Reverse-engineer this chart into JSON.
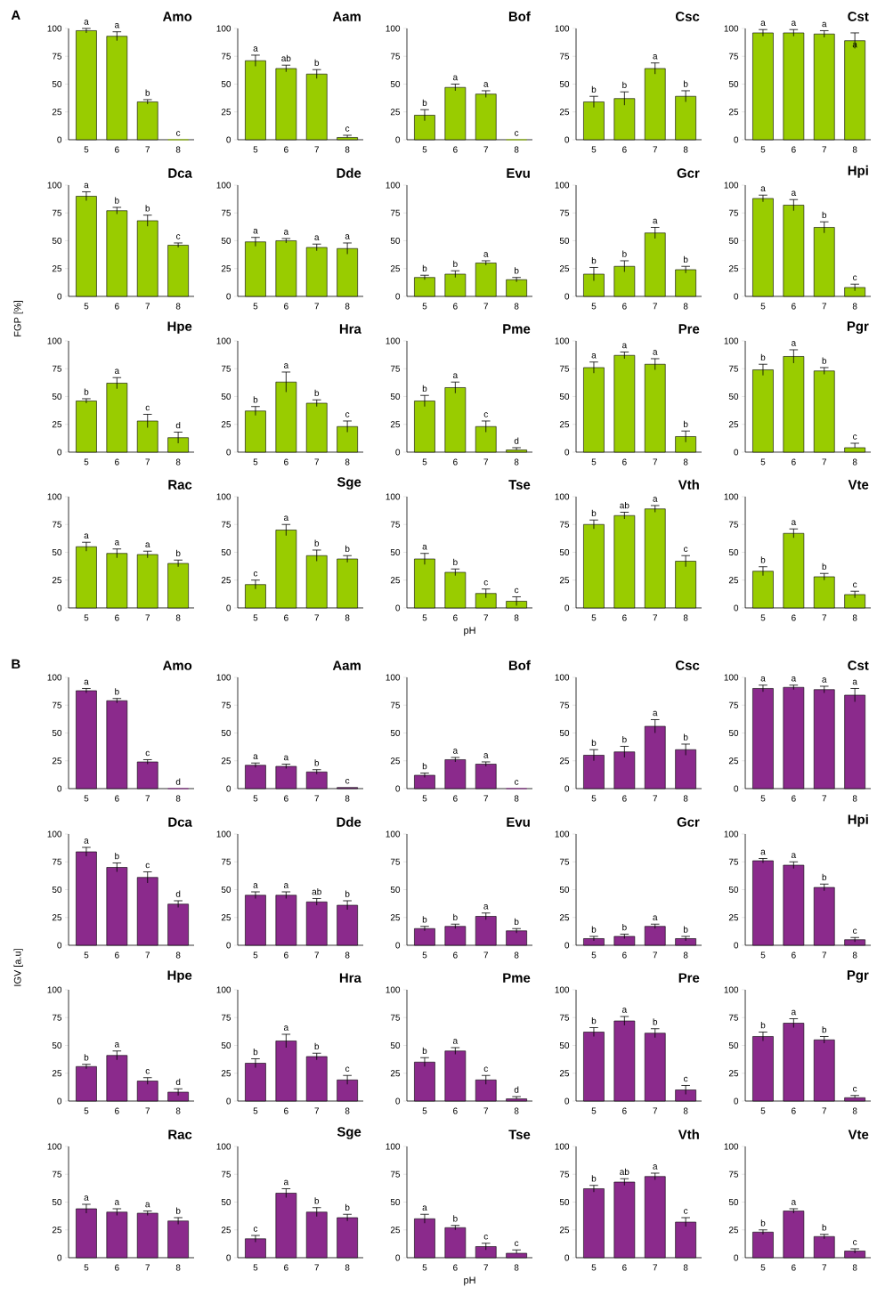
{
  "chart_data": [
    {
      "type": "bar",
      "title": "Amo",
      "annotations": [
        "A"
      ],
      "categories": [
        "5",
        "6",
        "7",
        "8"
      ],
      "values": [
        98,
        93,
        34,
        0
      ],
      "errors": [
        2,
        4,
        2,
        null
      ],
      "value_labels": [
        "a",
        "a",
        "b",
        "c"
      ],
      "color": "#99cc00",
      "ylim": [
        0,
        100
      ],
      "yticks": [
        0,
        25,
        50,
        75,
        100
      ]
    },
    {
      "type": "bar",
      "title": "Aam",
      "categories": [
        "5",
        "6",
        "7",
        "8"
      ],
      "values": [
        71,
        64,
        59,
        2
      ],
      "errors": [
        5,
        3,
        4,
        [
          2,
          4
        ]
      ],
      "value_labels": [
        "a",
        "ab",
        "b",
        "c"
      ],
      "color": "#99cc00",
      "ylim": [
        0,
        100
      ],
      "yticks": [
        0,
        25,
        50,
        75,
        100
      ]
    },
    {
      "type": "bar",
      "title": "Bof",
      "categories": [
        "5",
        "6",
        "7",
        "8"
      ],
      "values": [
        22,
        47,
        41,
        0
      ],
      "errors": [
        5,
        3,
        3,
        null
      ],
      "value_labels": [
        "b",
        "a",
        "a",
        "c"
      ],
      "color": "#99cc00",
      "ylim": [
        0,
        100
      ],
      "yticks": [
        0,
        25,
        50,
        75,
        100
      ]
    },
    {
      "type": "bar",
      "title": "Csc",
      "categories": [
        "5",
        "6",
        "7",
        "8"
      ],
      "values": [
        34,
        37,
        64,
        39
      ],
      "errors": [
        5,
        6,
        5,
        5
      ],
      "value_labels": [
        "b",
        "b",
        "a",
        "b"
      ],
      "color": "#99cc00",
      "ylim": [
        0,
        100
      ],
      "yticks": [
        0,
        25,
        50,
        75,
        100
      ]
    },
    {
      "type": "bar",
      "title": "Cst",
      "categories": [
        "5",
        "6",
        "7",
        "8"
      ],
      "values": [
        96,
        96,
        95,
        89
      ],
      "errors": [
        3,
        3,
        3,
        7
      ],
      "value_labels": [
        "a",
        "a",
        "a",
        "a"
      ],
      "color": "#99cc00",
      "ylim": [
        0,
        100
      ],
      "yticks": [
        0,
        25,
        50,
        75,
        100
      ]
    },
    {
      "type": "bar",
      "title": "Dca",
      "categories": [
        "5",
        "6",
        "7",
        "8"
      ],
      "values": [
        90,
        77,
        68,
        46
      ],
      "errors": [
        4,
        3,
        5,
        2
      ],
      "value_labels": [
        "a",
        "b",
        "b",
        "c"
      ],
      "color": "#99cc00",
      "ylim": [
        0,
        100
      ],
      "yticks": [
        0,
        25,
        50,
        75,
        100
      ],
      "ylabel": "FGP [%]"
    },
    {
      "type": "bar",
      "title": "Dde",
      "categories": [
        "5",
        "6",
        "7",
        "8"
      ],
      "values": [
        49,
        50,
        44,
        43
      ],
      "errors": [
        4,
        2,
        3,
        5
      ],
      "value_labels": [
        "a",
        "a",
        "a",
        "a"
      ],
      "color": "#99cc00",
      "ylim": [
        0,
        100
      ],
      "yticks": [
        0,
        25,
        50,
        75,
        100
      ]
    },
    {
      "type": "bar",
      "title": "Evu",
      "categories": [
        "5",
        "6",
        "7",
        "8"
      ],
      "values": [
        17,
        20,
        30,
        15
      ],
      "errors": [
        2,
        3,
        2,
        2
      ],
      "value_labels": [
        "b",
        "b",
        "a",
        "b"
      ],
      "color": "#99cc00",
      "ylim": [
        0,
        100
      ],
      "yticks": [
        0,
        25,
        50,
        75,
        100
      ]
    },
    {
      "type": "bar",
      "title": "Gcr",
      "categories": [
        "5",
        "6",
        "7",
        "8"
      ],
      "values": [
        20,
        27,
        57,
        24
      ],
      "errors": [
        6,
        5,
        5,
        3
      ],
      "value_labels": [
        "b",
        "b",
        "a",
        "b"
      ],
      "color": "#99cc00",
      "ylim": [
        0,
        100
      ],
      "yticks": [
        0,
        25,
        50,
        75,
        100
      ]
    },
    {
      "type": "bar",
      "title": "Hpi",
      "categories": [
        "5",
        "6",
        "7",
        "8"
      ],
      "values": [
        88,
        82,
        62,
        8
      ],
      "errors": [
        3,
        5,
        5,
        3
      ],
      "value_labels": [
        "a",
        "a",
        "b",
        "c"
      ],
      "color": "#99cc00",
      "ylim": [
        0,
        100
      ],
      "yticks": [
        0,
        25,
        50,
        75,
        100
      ]
    },
    {
      "type": "bar",
      "title": "Hpe",
      "categories": [
        "5",
        "6",
        "7",
        "8"
      ],
      "values": [
        46,
        62,
        28,
        13
      ],
      "errors": [
        2,
        5,
        6,
        5
      ],
      "value_labels": [
        "b",
        "a",
        "c",
        "d"
      ],
      "color": "#99cc00",
      "ylim": [
        0,
        100
      ],
      "yticks": [
        0,
        25,
        50,
        75,
        100
      ]
    },
    {
      "type": "bar",
      "title": "Hra",
      "categories": [
        "5",
        "6",
        "7",
        "8"
      ],
      "values": [
        37,
        63,
        44,
        23
      ],
      "errors": [
        4,
        9,
        3,
        5
      ],
      "value_labels": [
        "b",
        "a",
        "b",
        "c"
      ],
      "color": "#99cc00",
      "ylim": [
        0,
        100
      ],
      "yticks": [
        0,
        25,
        50,
        75,
        100
      ]
    },
    {
      "type": "bar",
      "title": "Pme",
      "categories": [
        "5",
        "6",
        "7",
        "8"
      ],
      "values": [
        46,
        58,
        23,
        2
      ],
      "errors": [
        5,
        5,
        5,
        [
          2,
          4
        ]
      ],
      "value_labels": [
        "b",
        "a",
        "c",
        "d"
      ],
      "color": "#99cc00",
      "ylim": [
        0,
        100
      ],
      "yticks": [
        0,
        25,
        50,
        75,
        100
      ]
    },
    {
      "type": "bar",
      "title": "Pre",
      "categories": [
        "5",
        "6",
        "7",
        "8"
      ],
      "values": [
        76,
        87,
        79,
        14
      ],
      "errors": [
        5,
        3,
        5,
        5
      ],
      "value_labels": [
        "a",
        "a",
        "a",
        "b"
      ],
      "color": "#99cc00",
      "ylim": [
        0,
        100
      ],
      "yticks": [
        0,
        25,
        50,
        75,
        100
      ]
    },
    {
      "type": "bar",
      "title": "Pgr",
      "categories": [
        "5",
        "6",
        "7",
        "8"
      ],
      "values": [
        74,
        86,
        73,
        4
      ],
      "errors": [
        5,
        6,
        3,
        [
          4,
          8
        ]
      ],
      "value_labels": [
        "b",
        "a",
        "b",
        "c"
      ],
      "color": "#99cc00",
      "ylim": [
        0,
        100
      ],
      "yticks": [
        0,
        25,
        50,
        75,
        100
      ]
    },
    {
      "type": "bar",
      "title": "Rac",
      "categories": [
        "5",
        "6",
        "7",
        "8"
      ],
      "values": [
        55,
        49,
        48,
        40
      ],
      "errors": [
        4,
        4,
        3,
        3
      ],
      "value_labels": [
        "a",
        "a",
        "a",
        "b"
      ],
      "color": "#99cc00",
      "ylim": [
        0,
        100
      ],
      "yticks": [
        0,
        25,
        50,
        75,
        100
      ]
    },
    {
      "type": "bar",
      "title": "Sge",
      "categories": [
        "5",
        "6",
        "7",
        "8"
      ],
      "values": [
        21,
        70,
        47,
        44
      ],
      "errors": [
        4,
        5,
        5,
        3
      ],
      "value_labels": [
        "c",
        "a",
        "b",
        "b"
      ],
      "color": "#99cc00",
      "ylim": [
        0,
        100
      ],
      "yticks": [
        0,
        25,
        50,
        75,
        100
      ]
    },
    {
      "type": "bar",
      "title": "Tse",
      "categories": [
        "5",
        "6",
        "7",
        "8"
      ],
      "values": [
        44,
        32,
        13,
        6
      ],
      "errors": [
        5,
        3,
        4,
        4
      ],
      "value_labels": [
        "a",
        "b",
        "c",
        "c"
      ],
      "color": "#99cc00",
      "ylim": [
        0,
        100
      ],
      "yticks": [
        0,
        25,
        50,
        75,
        100
      ],
      "xlabel": "pH"
    },
    {
      "type": "bar",
      "title": "Vth",
      "categories": [
        "5",
        "6",
        "7",
        "8"
      ],
      "values": [
        75,
        83,
        89,
        42
      ],
      "errors": [
        4,
        3,
        3,
        5
      ],
      "value_labels": [
        "b",
        "ab",
        "a",
        "c"
      ],
      "color": "#99cc00",
      "ylim": [
        0,
        100
      ],
      "yticks": [
        0,
        25,
        50,
        75,
        100
      ]
    },
    {
      "type": "bar",
      "title": "Vte",
      "categories": [
        "5",
        "6",
        "7",
        "8"
      ],
      "values": [
        33,
        67,
        28,
        12
      ],
      "errors": [
        4,
        4,
        3,
        3
      ],
      "value_labels": [
        "b",
        "a",
        "b",
        "c"
      ],
      "color": "#99cc00",
      "ylim": [
        0,
        100
      ],
      "yticks": [
        0,
        25,
        50,
        75,
        100
      ]
    },
    {
      "type": "bar",
      "title": "Amo",
      "annotations": [
        "B"
      ],
      "categories": [
        "5",
        "6",
        "7",
        "8"
      ],
      "values": [
        88,
        79,
        24,
        0
      ],
      "errors": [
        2,
        2,
        2,
        null
      ],
      "value_labels": [
        "a",
        "b",
        "c",
        "d"
      ],
      "color": "#8b2a8c",
      "ylim": [
        0,
        100
      ],
      "yticks": [
        0,
        25,
        50,
        75,
        100
      ]
    },
    {
      "type": "bar",
      "title": "Aam",
      "categories": [
        "5",
        "6",
        "7",
        "8"
      ],
      "values": [
        21,
        20,
        15,
        1
      ],
      "errors": [
        2,
        2,
        2,
        null
      ],
      "value_labels": [
        "a",
        "a",
        "b",
        "c"
      ],
      "color": "#8b2a8c",
      "ylim": [
        0,
        100
      ],
      "yticks": [
        0,
        25,
        50,
        75,
        100
      ]
    },
    {
      "type": "bar",
      "title": "Bof",
      "categories": [
        "5",
        "6",
        "7",
        "8"
      ],
      "values": [
        12,
        26,
        22,
        0
      ],
      "errors": [
        2,
        2,
        2,
        null
      ],
      "value_labels": [
        "b",
        "a",
        "a",
        "c"
      ],
      "color": "#8b2a8c",
      "ylim": [
        0,
        100
      ],
      "yticks": [
        0,
        25,
        50,
        75,
        100
      ]
    },
    {
      "type": "bar",
      "title": "Csc",
      "categories": [
        "5",
        "6",
        "7",
        "8"
      ],
      "values": [
        30,
        33,
        56,
        35
      ],
      "errors": [
        5,
        5,
        6,
        5
      ],
      "value_labels": [
        "b",
        "b",
        "a",
        "b"
      ],
      "color": "#8b2a8c",
      "ylim": [
        0,
        100
      ],
      "yticks": [
        0,
        25,
        50,
        75,
        100
      ]
    },
    {
      "type": "bar",
      "title": "Cst",
      "categories": [
        "5",
        "6",
        "7",
        "8"
      ],
      "values": [
        90,
        91,
        89,
        84
      ],
      "errors": [
        3,
        2,
        3,
        6
      ],
      "value_labels": [
        "a",
        "a",
        "a",
        "a"
      ],
      "color": "#8b2a8c",
      "ylim": [
        0,
        100
      ],
      "yticks": [
        0,
        25,
        50,
        75,
        100
      ]
    },
    {
      "type": "bar",
      "title": "Dca",
      "categories": [
        "5",
        "6",
        "7",
        "8"
      ],
      "values": [
        84,
        70,
        61,
        37
      ],
      "errors": [
        4,
        4,
        5,
        3
      ],
      "value_labels": [
        "a",
        "b",
        "c",
        "d"
      ],
      "color": "#8b2a8c",
      "ylim": [
        0,
        100
      ],
      "yticks": [
        0,
        25,
        50,
        75,
        100
      ],
      "ylabel": "IGV [a.u]"
    },
    {
      "type": "bar",
      "title": "Dde",
      "categories": [
        "5",
        "6",
        "7",
        "8"
      ],
      "values": [
        45,
        45,
        39,
        36
      ],
      "errors": [
        3,
        3,
        3,
        4
      ],
      "value_labels": [
        "a",
        "a",
        "ab",
        "b"
      ],
      "color": "#8b2a8c",
      "ylim": [
        0,
        100
      ],
      "yticks": [
        0,
        25,
        50,
        75,
        100
      ]
    },
    {
      "type": "bar",
      "title": "Evu",
      "categories": [
        "5",
        "6",
        "7",
        "8"
      ],
      "values": [
        15,
        17,
        26,
        13
      ],
      "errors": [
        2,
        2,
        3,
        2
      ],
      "value_labels": [
        "b",
        "b",
        "a",
        "b"
      ],
      "color": "#8b2a8c",
      "ylim": [
        0,
        100
      ],
      "yticks": [
        0,
        25,
        50,
        75,
        100
      ]
    },
    {
      "type": "bar",
      "title": "Gcr",
      "categories": [
        "5",
        "6",
        "7",
        "8"
      ],
      "values": [
        6,
        8,
        17,
        6
      ],
      "errors": [
        2,
        2,
        2,
        2
      ],
      "value_labels": [
        "b",
        "b",
        "a",
        "b"
      ],
      "color": "#8b2a8c",
      "ylim": [
        0,
        100
      ],
      "yticks": [
        0,
        25,
        50,
        75,
        100
      ]
    },
    {
      "type": "bar",
      "title": "Hpi",
      "categories": [
        "5",
        "6",
        "7",
        "8"
      ],
      "values": [
        76,
        72,
        52,
        5
      ],
      "errors": [
        2,
        3,
        3,
        2
      ],
      "value_labels": [
        "a",
        "a",
        "b",
        "c"
      ],
      "color": "#8b2a8c",
      "ylim": [
        0,
        100
      ],
      "yticks": [
        0,
        25,
        50,
        75,
        100
      ]
    },
    {
      "type": "bar",
      "title": "Hpe",
      "categories": [
        "5",
        "6",
        "7",
        "8"
      ],
      "values": [
        31,
        41,
        18,
        8
      ],
      "errors": [
        2,
        4,
        3,
        3
      ],
      "value_labels": [
        "b",
        "a",
        "c",
        "d"
      ],
      "color": "#8b2a8c",
      "ylim": [
        0,
        100
      ],
      "yticks": [
        0,
        25,
        50,
        75,
        100
      ]
    },
    {
      "type": "bar",
      "title": "Hra",
      "categories": [
        "5",
        "6",
        "7",
        "8"
      ],
      "values": [
        34,
        54,
        40,
        19
      ],
      "errors": [
        4,
        6,
        3,
        4
      ],
      "value_labels": [
        "b",
        "a",
        "b",
        "c"
      ],
      "color": "#8b2a8c",
      "ylim": [
        0,
        100
      ],
      "yticks": [
        0,
        25,
        50,
        75,
        100
      ]
    },
    {
      "type": "bar",
      "title": "Pme",
      "categories": [
        "5",
        "6",
        "7",
        "8"
      ],
      "values": [
        35,
        45,
        19,
        2
      ],
      "errors": [
        4,
        3,
        4,
        [
          2,
          4
        ]
      ],
      "value_labels": [
        "b",
        "a",
        "c",
        "d"
      ],
      "color": "#8b2a8c",
      "ylim": [
        0,
        100
      ],
      "yticks": [
        0,
        25,
        50,
        75,
        100
      ]
    },
    {
      "type": "bar",
      "title": "Pre",
      "categories": [
        "5",
        "6",
        "7",
        "8"
      ],
      "values": [
        62,
        72,
        61,
        10
      ],
      "errors": [
        4,
        4,
        4,
        4
      ],
      "value_labels": [
        "b",
        "a",
        "b",
        "c"
      ],
      "color": "#8b2a8c",
      "ylim": [
        0,
        100
      ],
      "yticks": [
        0,
        25,
        50,
        75,
        100
      ]
    },
    {
      "type": "bar",
      "title": "Pgr",
      "categories": [
        "5",
        "6",
        "7",
        "8"
      ],
      "values": [
        58,
        70,
        55,
        3
      ],
      "errors": [
        4,
        4,
        3,
        [
          3,
          5
        ]
      ],
      "value_labels": [
        "b",
        "a",
        "b",
        "c"
      ],
      "color": "#8b2a8c",
      "ylim": [
        0,
        100
      ],
      "yticks": [
        0,
        25,
        50,
        75,
        100
      ]
    },
    {
      "type": "bar",
      "title": "Rac",
      "categories": [
        "5",
        "6",
        "7",
        "8"
      ],
      "values": [
        44,
        41,
        40,
        33
      ],
      "errors": [
        4,
        3,
        2,
        3
      ],
      "value_labels": [
        "a",
        "a",
        "a",
        "b"
      ],
      "color": "#8b2a8c",
      "ylim": [
        0,
        100
      ],
      "yticks": [
        0,
        25,
        50,
        75,
        100
      ]
    },
    {
      "type": "bar",
      "title": "Sge",
      "categories": [
        "5",
        "6",
        "7",
        "8"
      ],
      "values": [
        17,
        58,
        41,
        36
      ],
      "errors": [
        3,
        4,
        4,
        3
      ],
      "value_labels": [
        "c",
        "a",
        "b",
        "b"
      ],
      "color": "#8b2a8c",
      "ylim": [
        0,
        100
      ],
      "yticks": [
        0,
        25,
        50,
        75,
        100
      ]
    },
    {
      "type": "bar",
      "title": "Tse",
      "categories": [
        "5",
        "6",
        "7",
        "8"
      ],
      "values": [
        35,
        27,
        10,
        4
      ],
      "errors": [
        4,
        2,
        3,
        [
          4,
          7
        ]
      ],
      "value_labels": [
        "a",
        "b",
        "c",
        "c"
      ],
      "color": "#8b2a8c",
      "ylim": [
        0,
        100
      ],
      "yticks": [
        0,
        25,
        50,
        75,
        100
      ],
      "xlabel": "pH"
    },
    {
      "type": "bar",
      "title": "Vth",
      "categories": [
        "5",
        "6",
        "7",
        "8"
      ],
      "values": [
        62,
        68,
        73,
        32
      ],
      "errors": [
        3,
        3,
        3,
        4
      ],
      "value_labels": [
        "b",
        "ab",
        "a",
        "c"
      ],
      "color": "#8b2a8c",
      "ylim": [
        0,
        100
      ],
      "yticks": [
        0,
        25,
        50,
        75,
        100
      ]
    },
    {
      "type": "bar",
      "title": "Vte",
      "categories": [
        "5",
        "6",
        "7",
        "8"
      ],
      "values": [
        23,
        42,
        19,
        6
      ],
      "errors": [
        2,
        2,
        2,
        2
      ],
      "value_labels": [
        "b",
        "a",
        "b",
        "c"
      ],
      "color": "#8b2a8c",
      "ylim": [
        0,
        100
      ],
      "yticks": [
        0,
        25,
        50,
        75,
        100
      ]
    }
  ]
}
